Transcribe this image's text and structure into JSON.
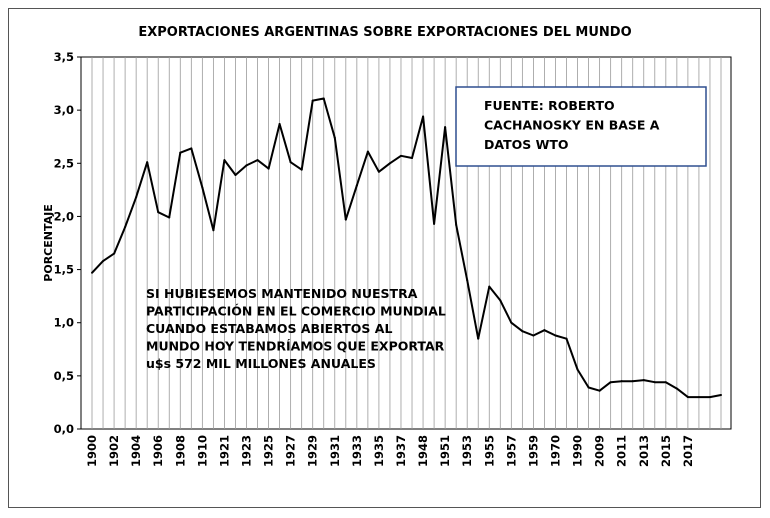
{
  "chart_data": {
    "type": "line",
    "title": "EXPORTACIONES ARGENTINAS SOBRE EXPORTACIONES DEL MUNDO",
    "xlabel": "",
    "ylabel": "PORCENTAJE",
    "ylim": [
      0,
      3.5
    ],
    "y_ticks": [
      "0,0",
      "0,5",
      "1,0",
      "1,5",
      "2,0",
      "2,5",
      "3,0",
      "3,5"
    ],
    "x_tick_labels": [
      "1900",
      "1902",
      "1904",
      "1906",
      "1908",
      "1910",
      "1921",
      "1923",
      "1925",
      "1927",
      "1929",
      "1931",
      "1933",
      "1935",
      "1937",
      "1948",
      "1951",
      "1953",
      "1955",
      "1957",
      "1959",
      "1970",
      "1990",
      "2009",
      "2011",
      "2013",
      "2015",
      "2017"
    ],
    "grid": "vertical",
    "legend": "none",
    "line_color": "#000000",
    "series": [
      {
        "values": [
          1.47,
          1.58,
          1.65,
          1.9,
          2.18,
          2.51,
          2.04,
          1.99,
          2.6,
          2.64,
          2.27,
          1.87,
          2.53,
          2.39,
          2.48,
          2.53,
          2.45,
          2.87,
          2.51,
          2.44,
          3.09,
          3.11,
          2.74,
          1.97,
          2.29,
          2.61,
          2.42,
          2.5,
          2.57,
          2.55,
          2.94,
          1.93,
          2.84,
          1.92,
          1.4,
          0.85,
          1.34,
          1.21,
          1.0,
          0.92,
          0.88,
          0.93,
          0.88,
          0.85,
          0.56,
          0.39,
          0.36,
          0.44,
          0.45,
          0.45,
          0.46,
          0.44,
          0.44,
          0.38,
          0.3,
          0.3,
          0.3,
          0.32
        ]
      }
    ],
    "source_box": "FUENTE: ROBERTO CACHANOSKY EN BASE A DATOS WTO",
    "source_box_lines": [
      "FUENTE: ROBERTO",
      "CACHANOSKY EN BASE A",
      "DATOS WTO"
    ],
    "source_box_border": "#2f4f8f",
    "annotation_lines": [
      "SI HUBIESEMOS MANTENIDO NUESTRA",
      "PARTICIPACIÓN EN EL COMERCIO MUNDIAL",
      "CUANDO ESTABAMOS ABIERTOS AL",
      "MUNDO HOY TENDRÍAMOS QUE EXPORTAR",
      "u$s 572 MIL  MILLONES ANUALES"
    ]
  }
}
